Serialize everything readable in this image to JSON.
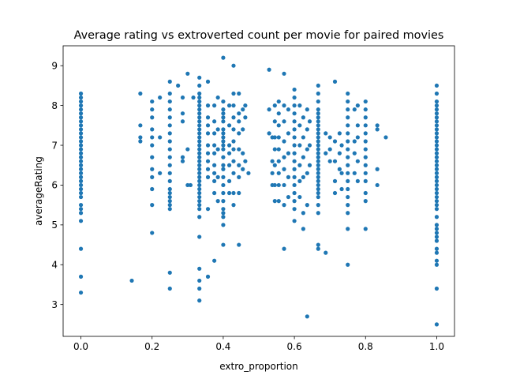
{
  "chart_data": {
    "type": "scatter",
    "title": "Average rating vs extroverted count per movie for paired movies",
    "xlabel": "extro_proportion",
    "ylabel": "averageRating",
    "xlim": [
      -0.05,
      1.05
    ],
    "ylim": [
      2.2,
      9.5
    ],
    "x_ticks": [
      0.0,
      0.2,
      0.4,
      0.6,
      0.8,
      1.0
    ],
    "x_tick_labels": [
      "0.0",
      "0.2",
      "0.4",
      "0.6",
      "0.8",
      "1.0"
    ],
    "y_ticks": [
      3,
      4,
      5,
      6,
      7,
      8,
      9
    ],
    "y_tick_labels": [
      "3",
      "4",
      "5",
      "6",
      "7",
      "8",
      "9"
    ],
    "grid": false,
    "marker_color": "#1f77b4",
    "points": [
      [
        0.0,
        8.3
      ],
      [
        0.0,
        8.2
      ],
      [
        0.0,
        8.1
      ],
      [
        0.0,
        8.0
      ],
      [
        0.0,
        7.9
      ],
      [
        0.0,
        7.8
      ],
      [
        0.0,
        7.7
      ],
      [
        0.0,
        7.6
      ],
      [
        0.0,
        7.5
      ],
      [
        0.0,
        7.4
      ],
      [
        0.0,
        7.3
      ],
      [
        0.0,
        7.2
      ],
      [
        0.0,
        7.1
      ],
      [
        0.0,
        7.0
      ],
      [
        0.0,
        6.9
      ],
      [
        0.0,
        6.8
      ],
      [
        0.0,
        6.7
      ],
      [
        0.0,
        6.6
      ],
      [
        0.0,
        6.5
      ],
      [
        0.0,
        6.4
      ],
      [
        0.0,
        6.3
      ],
      [
        0.0,
        6.2
      ],
      [
        0.0,
        6.1
      ],
      [
        0.0,
        6.0
      ],
      [
        0.0,
        5.9
      ],
      [
        0.0,
        5.8
      ],
      [
        0.0,
        5.7
      ],
      [
        0.0,
        5.5
      ],
      [
        0.0,
        5.4
      ],
      [
        0.0,
        5.3
      ],
      [
        0.0,
        5.1
      ],
      [
        0.0,
        4.4
      ],
      [
        0.0,
        3.7
      ],
      [
        0.0,
        3.3
      ],
      [
        0.143,
        3.6
      ],
      [
        0.167,
        8.3
      ],
      [
        0.167,
        7.5
      ],
      [
        0.167,
        7.2
      ],
      [
        0.167,
        7.1
      ],
      [
        0.2,
        8.1
      ],
      [
        0.2,
        7.9
      ],
      [
        0.2,
        7.7
      ],
      [
        0.2,
        7.4
      ],
      [
        0.2,
        7.2
      ],
      [
        0.2,
        7.0
      ],
      [
        0.2,
        6.7
      ],
      [
        0.2,
        6.4
      ],
      [
        0.2,
        6.2
      ],
      [
        0.2,
        5.9
      ],
      [
        0.2,
        5.5
      ],
      [
        0.2,
        4.8
      ],
      [
        0.222,
        8.2
      ],
      [
        0.222,
        7.2
      ],
      [
        0.222,
        6.3
      ],
      [
        0.25,
        8.6
      ],
      [
        0.25,
        8.3
      ],
      [
        0.25,
        8.1
      ],
      [
        0.25,
        7.9
      ],
      [
        0.25,
        7.7
      ],
      [
        0.25,
        7.5
      ],
      [
        0.25,
        7.3
      ],
      [
        0.25,
        7.1
      ],
      [
        0.25,
        6.9
      ],
      [
        0.25,
        6.7
      ],
      [
        0.25,
        6.5
      ],
      [
        0.25,
        6.3
      ],
      [
        0.25,
        6.1
      ],
      [
        0.25,
        5.9
      ],
      [
        0.25,
        5.8
      ],
      [
        0.25,
        5.7
      ],
      [
        0.25,
        5.6
      ],
      [
        0.25,
        5.5
      ],
      [
        0.25,
        5.4
      ],
      [
        0.25,
        3.8
      ],
      [
        0.25,
        3.4
      ],
      [
        0.273,
        8.5
      ],
      [
        0.286,
        8.2
      ],
      [
        0.286,
        7.8
      ],
      [
        0.286,
        7.6
      ],
      [
        0.286,
        6.7
      ],
      [
        0.286,
        6.6
      ],
      [
        0.3,
        8.8
      ],
      [
        0.3,
        6.9
      ],
      [
        0.3,
        6.0
      ],
      [
        0.308,
        6.0
      ],
      [
        0.316,
        8.2
      ],
      [
        0.333,
        8.7
      ],
      [
        0.333,
        8.5
      ],
      [
        0.333,
        8.3
      ],
      [
        0.333,
        8.2
      ],
      [
        0.333,
        8.1
      ],
      [
        0.333,
        8.0
      ],
      [
        0.333,
        7.9
      ],
      [
        0.333,
        7.8
      ],
      [
        0.333,
        7.7
      ],
      [
        0.333,
        7.6
      ],
      [
        0.333,
        7.5
      ],
      [
        0.333,
        7.4
      ],
      [
        0.333,
        7.3
      ],
      [
        0.333,
        7.2
      ],
      [
        0.333,
        7.1
      ],
      [
        0.333,
        7.0
      ],
      [
        0.333,
        6.9
      ],
      [
        0.333,
        6.8
      ],
      [
        0.333,
        6.7
      ],
      [
        0.333,
        6.6
      ],
      [
        0.333,
        6.5
      ],
      [
        0.333,
        6.4
      ],
      [
        0.333,
        6.3
      ],
      [
        0.333,
        6.2
      ],
      [
        0.333,
        6.1
      ],
      [
        0.333,
        6.0
      ],
      [
        0.333,
        5.9
      ],
      [
        0.333,
        5.8
      ],
      [
        0.333,
        5.7
      ],
      [
        0.333,
        5.6
      ],
      [
        0.333,
        5.5
      ],
      [
        0.333,
        5.4
      ],
      [
        0.333,
        5.2
      ],
      [
        0.333,
        4.7
      ],
      [
        0.333,
        3.9
      ],
      [
        0.333,
        3.6
      ],
      [
        0.333,
        3.4
      ],
      [
        0.333,
        3.1
      ],
      [
        0.357,
        8.6
      ],
      [
        0.357,
        8.0
      ],
      [
        0.357,
        7.7
      ],
      [
        0.357,
        7.5
      ],
      [
        0.357,
        7.3
      ],
      [
        0.357,
        7.0
      ],
      [
        0.357,
        6.8
      ],
      [
        0.357,
        6.6
      ],
      [
        0.357,
        6.4
      ],
      [
        0.357,
        6.2
      ],
      [
        0.357,
        5.4
      ],
      [
        0.357,
        3.7
      ],
      [
        0.375,
        8.0
      ],
      [
        0.375,
        7.6
      ],
      [
        0.375,
        7.3
      ],
      [
        0.375,
        7.0
      ],
      [
        0.375,
        6.8
      ],
      [
        0.375,
        6.5
      ],
      [
        0.375,
        6.3
      ],
      [
        0.375,
        6.1
      ],
      [
        0.375,
        5.8
      ],
      [
        0.375,
        4.1
      ],
      [
        0.385,
        8.2
      ],
      [
        0.385,
        7.4
      ],
      [
        0.385,
        6.9
      ],
      [
        0.385,
        6.2
      ],
      [
        0.385,
        5.6
      ],
      [
        0.4,
        9.2
      ],
      [
        0.4,
        8.1
      ],
      [
        0.4,
        7.9
      ],
      [
        0.4,
        7.8
      ],
      [
        0.4,
        7.7
      ],
      [
        0.4,
        7.6
      ],
      [
        0.4,
        7.4
      ],
      [
        0.4,
        7.3
      ],
      [
        0.4,
        7.2
      ],
      [
        0.4,
        7.1
      ],
      [
        0.4,
        7.0
      ],
      [
        0.4,
        6.9
      ],
      [
        0.4,
        6.7
      ],
      [
        0.4,
        6.5
      ],
      [
        0.4,
        6.4
      ],
      [
        0.4,
        6.2
      ],
      [
        0.4,
        6.0
      ],
      [
        0.4,
        5.8
      ],
      [
        0.4,
        5.6
      ],
      [
        0.4,
        5.4
      ],
      [
        0.4,
        5.3
      ],
      [
        0.4,
        5.2
      ],
      [
        0.4,
        5.0
      ],
      [
        0.4,
        4.5
      ],
      [
        0.417,
        8.0
      ],
      [
        0.417,
        7.5
      ],
      [
        0.417,
        7.0
      ],
      [
        0.417,
        6.8
      ],
      [
        0.417,
        6.5
      ],
      [
        0.417,
        6.1
      ],
      [
        0.417,
        5.8
      ],
      [
        0.429,
        9.0
      ],
      [
        0.429,
        8.3
      ],
      [
        0.429,
        8.0
      ],
      [
        0.429,
        7.7
      ],
      [
        0.429,
        7.4
      ],
      [
        0.429,
        7.1
      ],
      [
        0.429,
        6.9
      ],
      [
        0.429,
        6.6
      ],
      [
        0.429,
        6.3
      ],
      [
        0.429,
        5.8
      ],
      [
        0.429,
        5.5
      ],
      [
        0.444,
        8.3
      ],
      [
        0.444,
        7.8
      ],
      [
        0.444,
        7.6
      ],
      [
        0.444,
        7.3
      ],
      [
        0.444,
        6.9
      ],
      [
        0.444,
        6.5
      ],
      [
        0.444,
        6.2
      ],
      [
        0.444,
        5.8
      ],
      [
        0.444,
        4.5
      ],
      [
        0.455,
        7.9
      ],
      [
        0.455,
        7.4
      ],
      [
        0.455,
        6.8
      ],
      [
        0.455,
        6.4
      ],
      [
        0.462,
        8.0
      ],
      [
        0.462,
        7.7
      ],
      [
        0.462,
        6.6
      ],
      [
        0.471,
        6.3
      ],
      [
        0.529,
        8.9
      ],
      [
        0.529,
        7.9
      ],
      [
        0.529,
        7.3
      ],
      [
        0.538,
        7.2
      ],
      [
        0.538,
        6.6
      ],
      [
        0.538,
        6.3
      ],
      [
        0.538,
        6.0
      ],
      [
        0.545,
        8.0
      ],
      [
        0.545,
        7.6
      ],
      [
        0.545,
        7.2
      ],
      [
        0.545,
        6.9
      ],
      [
        0.545,
        6.5
      ],
      [
        0.545,
        6.0
      ],
      [
        0.545,
        5.6
      ],
      [
        0.556,
        8.1
      ],
      [
        0.556,
        7.8
      ],
      [
        0.556,
        7.5
      ],
      [
        0.556,
        7.2
      ],
      [
        0.556,
        6.9
      ],
      [
        0.556,
        6.6
      ],
      [
        0.556,
        6.3
      ],
      [
        0.556,
        6.0
      ],
      [
        0.556,
        5.6
      ],
      [
        0.571,
        8.8
      ],
      [
        0.571,
        8.0
      ],
      [
        0.571,
        7.6
      ],
      [
        0.571,
        7.1
      ],
      [
        0.571,
        6.7
      ],
      [
        0.571,
        6.4
      ],
      [
        0.571,
        6.0
      ],
      [
        0.571,
        5.5
      ],
      [
        0.571,
        4.4
      ],
      [
        0.583,
        7.9
      ],
      [
        0.583,
        7.3
      ],
      [
        0.583,
        6.8
      ],
      [
        0.583,
        6.2
      ],
      [
        0.583,
        5.7
      ],
      [
        0.6,
        8.4
      ],
      [
        0.6,
        8.2
      ],
      [
        0.6,
        8.0
      ],
      [
        0.6,
        7.8
      ],
      [
        0.6,
        7.6
      ],
      [
        0.6,
        7.4
      ],
      [
        0.6,
        7.2
      ],
      [
        0.6,
        7.0
      ],
      [
        0.6,
        6.8
      ],
      [
        0.6,
        6.6
      ],
      [
        0.6,
        6.4
      ],
      [
        0.6,
        6.2
      ],
      [
        0.6,
        6.0
      ],
      [
        0.6,
        5.8
      ],
      [
        0.6,
        5.6
      ],
      [
        0.6,
        5.4
      ],
      [
        0.6,
        5.1
      ],
      [
        0.615,
        8.0
      ],
      [
        0.615,
        7.5
      ],
      [
        0.615,
        7.0
      ],
      [
        0.615,
        6.5
      ],
      [
        0.615,
        6.1
      ],
      [
        0.615,
        5.7
      ],
      [
        0.625,
        7.7
      ],
      [
        0.625,
        7.2
      ],
      [
        0.625,
        6.7
      ],
      [
        0.625,
        6.2
      ],
      [
        0.625,
        5.3
      ],
      [
        0.625,
        4.9
      ],
      [
        0.636,
        7.9
      ],
      [
        0.636,
        7.4
      ],
      [
        0.636,
        6.9
      ],
      [
        0.636,
        6.3
      ],
      [
        0.636,
        5.5
      ],
      [
        0.636,
        2.7
      ],
      [
        0.643,
        7.6
      ],
      [
        0.643,
        7.0
      ],
      [
        0.643,
        6.5
      ],
      [
        0.667,
        8.5
      ],
      [
        0.667,
        8.3
      ],
      [
        0.667,
        8.1
      ],
      [
        0.667,
        7.9
      ],
      [
        0.667,
        7.8
      ],
      [
        0.667,
        7.7
      ],
      [
        0.667,
        7.6
      ],
      [
        0.667,
        7.5
      ],
      [
        0.667,
        7.4
      ],
      [
        0.667,
        7.3
      ],
      [
        0.667,
        7.2
      ],
      [
        0.667,
        7.1
      ],
      [
        0.667,
        7.0
      ],
      [
        0.667,
        6.9
      ],
      [
        0.667,
        6.8
      ],
      [
        0.667,
        6.7
      ],
      [
        0.667,
        6.6
      ],
      [
        0.667,
        6.5
      ],
      [
        0.667,
        6.4
      ],
      [
        0.667,
        6.3
      ],
      [
        0.667,
        6.2
      ],
      [
        0.667,
        6.1
      ],
      [
        0.667,
        6.0
      ],
      [
        0.667,
        5.9
      ],
      [
        0.667,
        5.8
      ],
      [
        0.667,
        5.7
      ],
      [
        0.667,
        5.5
      ],
      [
        0.667,
        5.3
      ],
      [
        0.667,
        4.5
      ],
      [
        0.667,
        4.4
      ],
      [
        0.688,
        7.3
      ],
      [
        0.688,
        6.8
      ],
      [
        0.688,
        4.3
      ],
      [
        0.7,
        7.2
      ],
      [
        0.7,
        6.9
      ],
      [
        0.7,
        6.6
      ],
      [
        0.714,
        8.6
      ],
      [
        0.714,
        7.1
      ],
      [
        0.714,
        6.6
      ],
      [
        0.714,
        6.1
      ],
      [
        0.714,
        5.8
      ],
      [
        0.727,
        7.3
      ],
      [
        0.727,
        6.8
      ],
      [
        0.727,
        6.4
      ],
      [
        0.733,
        7.0
      ],
      [
        0.733,
        6.3
      ],
      [
        0.733,
        5.9
      ],
      [
        0.75,
        8.3
      ],
      [
        0.75,
        8.1
      ],
      [
        0.75,
        7.9
      ],
      [
        0.75,
        7.7
      ],
      [
        0.75,
        7.5
      ],
      [
        0.75,
        7.3
      ],
      [
        0.75,
        7.1
      ],
      [
        0.75,
        6.9
      ],
      [
        0.75,
        6.7
      ],
      [
        0.75,
        6.5
      ],
      [
        0.75,
        6.3
      ],
      [
        0.75,
        6.1
      ],
      [
        0.75,
        5.9
      ],
      [
        0.75,
        5.7
      ],
      [
        0.75,
        5.5
      ],
      [
        0.75,
        5.3
      ],
      [
        0.75,
        4.9
      ],
      [
        0.75,
        4.0
      ],
      [
        0.769,
        7.9
      ],
      [
        0.769,
        7.1
      ],
      [
        0.769,
        6.8
      ],
      [
        0.769,
        6.3
      ],
      [
        0.778,
        8.0
      ],
      [
        0.778,
        7.5
      ],
      [
        0.778,
        7.2
      ],
      [
        0.778,
        6.6
      ],
      [
        0.778,
        6.1
      ],
      [
        0.8,
        8.1
      ],
      [
        0.8,
        7.9
      ],
      [
        0.8,
        7.7
      ],
      [
        0.8,
        7.5
      ],
      [
        0.8,
        7.3
      ],
      [
        0.8,
        7.1
      ],
      [
        0.8,
        6.9
      ],
      [
        0.8,
        6.7
      ],
      [
        0.8,
        6.5
      ],
      [
        0.8,
        6.3
      ],
      [
        0.8,
        6.1
      ],
      [
        0.8,
        5.8
      ],
      [
        0.8,
        5.6
      ],
      [
        0.8,
        4.9
      ],
      [
        0.833,
        7.5
      ],
      [
        0.833,
        7.4
      ],
      [
        0.833,
        6.4
      ],
      [
        0.833,
        6.0
      ],
      [
        0.857,
        7.2
      ],
      [
        1.0,
        8.5
      ],
      [
        1.0,
        8.3
      ],
      [
        1.0,
        8.1
      ],
      [
        1.0,
        8.0
      ],
      [
        1.0,
        7.9
      ],
      [
        1.0,
        7.8
      ],
      [
        1.0,
        7.7
      ],
      [
        1.0,
        7.6
      ],
      [
        1.0,
        7.5
      ],
      [
        1.0,
        7.4
      ],
      [
        1.0,
        7.3
      ],
      [
        1.0,
        7.2
      ],
      [
        1.0,
        7.1
      ],
      [
        1.0,
        7.0
      ],
      [
        1.0,
        6.9
      ],
      [
        1.0,
        6.8
      ],
      [
        1.0,
        6.7
      ],
      [
        1.0,
        6.6
      ],
      [
        1.0,
        6.5
      ],
      [
        1.0,
        6.4
      ],
      [
        1.0,
        6.3
      ],
      [
        1.0,
        6.2
      ],
      [
        1.0,
        6.1
      ],
      [
        1.0,
        6.0
      ],
      [
        1.0,
        5.9
      ],
      [
        1.0,
        5.8
      ],
      [
        1.0,
        5.7
      ],
      [
        1.0,
        5.6
      ],
      [
        1.0,
        5.5
      ],
      [
        1.0,
        5.4
      ],
      [
        1.0,
        5.2
      ],
      [
        1.0,
        5.0
      ],
      [
        1.0,
        4.9
      ],
      [
        1.0,
        4.8
      ],
      [
        1.0,
        4.7
      ],
      [
        1.0,
        4.6
      ],
      [
        1.0,
        4.4
      ],
      [
        1.0,
        4.3
      ],
      [
        1.0,
        4.1
      ],
      [
        1.0,
        4.0
      ],
      [
        1.0,
        3.4
      ],
      [
        1.0,
        2.5
      ]
    ]
  }
}
